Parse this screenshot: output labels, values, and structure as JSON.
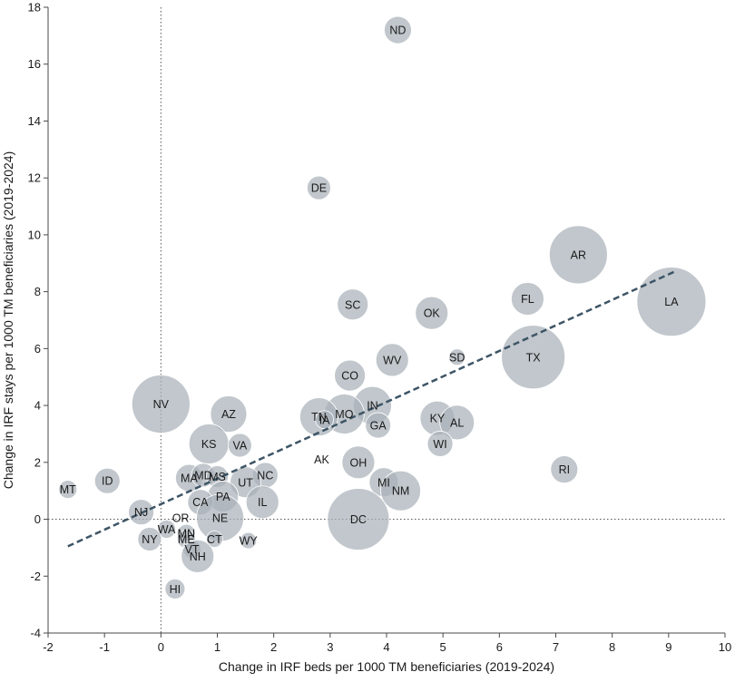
{
  "chart_data": {
    "type": "scatter",
    "title": "",
    "xlabel": "Change in IRF beds per 1000 TM beneficiaries (2019-2024)",
    "ylabel": "Change in IRF stays per 1000 TM beneficiaries (2019-2024)",
    "xlim": [
      -2,
      10
    ],
    "ylim": [
      -4,
      18
    ],
    "xticks": [
      -2,
      -1,
      0,
      1,
      2,
      3,
      4,
      5,
      6,
      7,
      8,
      9,
      10
    ],
    "yticks": [
      -4,
      -2,
      0,
      2,
      4,
      6,
      8,
      10,
      12,
      14,
      16,
      18
    ],
    "grid": false,
    "bubble_color": "#a9b2b9",
    "trend_color": "#3d5566",
    "reference_line_color": "#555555",
    "trend_line": {
      "x": [
        -1.65,
        9.1
      ],
      "y": [
        -0.95,
        8.7
      ]
    },
    "points": [
      {
        "label": "ND",
        "x": 4.2,
        "y": 17.2,
        "size": 15
      },
      {
        "label": "DE",
        "x": 2.8,
        "y": 11.65,
        "size": 13
      },
      {
        "label": "AR",
        "x": 7.4,
        "y": 9.3,
        "size": 32
      },
      {
        "label": "FL",
        "x": 6.5,
        "y": 7.75,
        "size": 18
      },
      {
        "label": "LA",
        "x": 9.05,
        "y": 7.65,
        "size": 38
      },
      {
        "label": "SC",
        "x": 3.4,
        "y": 7.55,
        "size": 17
      },
      {
        "label": "OK",
        "x": 4.8,
        "y": 7.25,
        "size": 18
      },
      {
        "label": "TX",
        "x": 6.6,
        "y": 5.7,
        "size": 35
      },
      {
        "label": "SD",
        "x": 5.25,
        "y": 5.7,
        "size": 9
      },
      {
        "label": "WV",
        "x": 4.1,
        "y": 5.6,
        "size": 18
      },
      {
        "label": "CO",
        "x": 3.35,
        "y": 5.05,
        "size": 17
      },
      {
        "label": "IN",
        "x": 3.75,
        "y": 4.0,
        "size": 21
      },
      {
        "label": "NV",
        "x": 0.0,
        "y": 4.05,
        "size": 32
      },
      {
        "label": "AZ",
        "x": 1.2,
        "y": 3.7,
        "size": 20
      },
      {
        "label": "MO",
        "x": 3.25,
        "y": 3.7,
        "size": 22
      },
      {
        "label": "TN",
        "x": 2.8,
        "y": 3.6,
        "size": 21
      },
      {
        "label": "IA",
        "x": 2.9,
        "y": 3.5,
        "size": 10
      },
      {
        "label": "KY",
        "x": 4.9,
        "y": 3.55,
        "size": 19
      },
      {
        "label": "AL",
        "x": 5.25,
        "y": 3.4,
        "size": 19
      },
      {
        "label": "GA",
        "x": 3.85,
        "y": 3.3,
        "size": 14
      },
      {
        "label": "KS",
        "x": 0.85,
        "y": 2.65,
        "size": 22
      },
      {
        "label": "VA",
        "x": 1.4,
        "y": 2.6,
        "size": 13
      },
      {
        "label": "WI",
        "x": 4.95,
        "y": 2.65,
        "size": 14
      },
      {
        "label": "AK",
        "x": 2.85,
        "y": 2.1,
        "size": 0
      },
      {
        "label": "OH",
        "x": 3.5,
        "y": 2.0,
        "size": 18
      },
      {
        "label": "RI",
        "x": 7.15,
        "y": 1.75,
        "size": 15
      },
      {
        "label": "MT",
        "x": -1.65,
        "y": 1.05,
        "size": 10
      },
      {
        "label": "ID",
        "x": -0.95,
        "y": 1.35,
        "size": 14
      },
      {
        "label": "MA",
        "x": 0.5,
        "y": 1.45,
        "size": 15
      },
      {
        "label": "MD",
        "x": 0.75,
        "y": 1.55,
        "size": 13
      },
      {
        "label": "MS",
        "x": 1.0,
        "y": 1.5,
        "size": 12
      },
      {
        "label": "NC",
        "x": 1.85,
        "y": 1.55,
        "size": 14
      },
      {
        "label": "MI",
        "x": 3.95,
        "y": 1.3,
        "size": 16
      },
      {
        "label": "UT",
        "x": 1.5,
        "y": 1.3,
        "size": 17
      },
      {
        "label": "NM",
        "x": 4.25,
        "y": 1.0,
        "size": 22
      },
      {
        "label": "PA",
        "x": 1.1,
        "y": 0.8,
        "size": 17
      },
      {
        "label": "IL",
        "x": 1.8,
        "y": 0.6,
        "size": 18
      },
      {
        "label": "CA",
        "x": 0.7,
        "y": 0.6,
        "size": 14
      },
      {
        "label": "NJ",
        "x": -0.35,
        "y": 0.25,
        "size": 14
      },
      {
        "label": "NE",
        "x": 1.05,
        "y": 0.05,
        "size": 26
      },
      {
        "label": "DC",
        "x": 3.5,
        "y": 0.0,
        "size": 34
      },
      {
        "label": "OR",
        "x": 0.35,
        "y": 0.05,
        "size": 0
      },
      {
        "label": "WA",
        "x": 0.1,
        "y": -0.35,
        "size": 10
      },
      {
        "label": "NY",
        "x": -0.2,
        "y": -0.7,
        "size": 13
      },
      {
        "label": "MN",
        "x": 0.45,
        "y": -0.5,
        "size": 10
      },
      {
        "label": "ME",
        "x": 0.45,
        "y": -0.7,
        "size": 10
      },
      {
        "label": "CT",
        "x": 0.95,
        "y": -0.7,
        "size": 9
      },
      {
        "label": "WY",
        "x": 1.55,
        "y": -0.75,
        "size": 9
      },
      {
        "label": "VT",
        "x": 0.55,
        "y": -1.05,
        "size": 10
      },
      {
        "label": "NH",
        "x": 0.65,
        "y": -1.3,
        "size": 18
      },
      {
        "label": "HI",
        "x": 0.25,
        "y": -2.45,
        "size": 11
      }
    ]
  }
}
